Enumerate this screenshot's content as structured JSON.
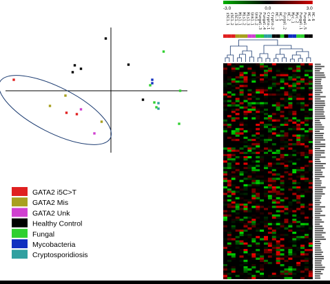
{
  "chart_data": [
    {
      "type": "scatter",
      "title": "",
      "xlabel": "",
      "ylabel": "",
      "axes": "crossing-lines-no-ticks",
      "grid": false,
      "legend_position": "bottom-left",
      "ellipse": "encircles GATA2 samples",
      "series": [
        {
          "name": "GATA2 i5C>T",
          "color": "#e02020",
          "points": [
            [
              -0.94,
              0.16
            ],
            [
              -0.43,
              -0.32
            ],
            [
              -0.33,
              -0.34
            ]
          ]
        },
        {
          "name": "GATA2 Mis",
          "color": "#a8a020",
          "points": [
            [
              -0.59,
              -0.22
            ],
            [
              -0.44,
              -0.07
            ],
            [
              -0.09,
              -0.45
            ]
          ]
        },
        {
          "name": "GATA2 Unk",
          "color": "#d040d0",
          "points": [
            [
              -0.29,
              -0.27
            ],
            [
              -0.16,
              -0.62
            ]
          ]
        },
        {
          "name": "Healthy Control",
          "color": "#000000",
          "points": [
            [
              -0.05,
              0.76
            ],
            [
              -0.35,
              0.37
            ],
            [
              -0.29,
              0.32
            ],
            [
              -0.37,
              0.27
            ],
            [
              0.17,
              0.38
            ],
            [
              0.31,
              -0.13
            ]
          ]
        },
        {
          "name": "Fungal",
          "color": "#30d030",
          "points": [
            [
              0.51,
              0.57
            ],
            [
              0.38,
              0.08
            ],
            [
              0.67,
              0.0
            ],
            [
              0.42,
              -0.17
            ],
            [
              0.66,
              -0.48
            ],
            [
              0.44,
              -0.24
            ]
          ]
        },
        {
          "name": "Mycobacteria",
          "color": "#1030c0",
          "points": [
            [
              0.4,
              0.16
            ],
            [
              0.4,
              0.11
            ]
          ]
        },
        {
          "name": "Cryptosporidiosis",
          "color": "#30a0a0",
          "points": [
            [
              0.46,
              -0.18
            ],
            [
              0.46,
              -0.26
            ]
          ]
        }
      ]
    },
    {
      "type": "heatmap",
      "colorscale": {
        "min_label": "-3.0",
        "mid_label": "0.0",
        "max_label": "3.0",
        "low_color": "#00b000",
        "mid_color": "#000000",
        "high_color": "#d00000"
      },
      "columns": [
        {
          "label": "i5C1.1",
          "group_color": "#e02020"
        },
        {
          "label": "i5C1.2",
          "group_color": "#e02020"
        },
        {
          "label": "i5C1.3",
          "group_color": "#e02020"
        },
        {
          "label": "Mis1.1",
          "group_color": "#a8a020"
        },
        {
          "label": "Mis1.2",
          "group_color": "#a8a020"
        },
        {
          "label": "Mis1.3",
          "group_color": "#a8a020"
        },
        {
          "label": "Unk1.1",
          "group_color": "#d040d0"
        },
        {
          "label": "Unk1.2",
          "group_color": "#d040d0"
        },
        {
          "label": "Fungal.3",
          "group_color": "#30d030"
        },
        {
          "label": "Fungal.4",
          "group_color": "#30d030"
        },
        {
          "label": "Crypto.1",
          "group_color": "#30a0a0"
        },
        {
          "label": "Crypto.2",
          "group_color": "#30a0a0"
        },
        {
          "label": "HC.3",
          "group_color": "#000000"
        },
        {
          "label": "HC.5",
          "group_color": "#000000"
        },
        {
          "label": "Fungal.2",
          "group_color": "#30d030"
        },
        {
          "label": "HC.2",
          "group_color": "#000000"
        },
        {
          "label": "Myc.1",
          "group_color": "#1030c0"
        },
        {
          "label": "Myc.2",
          "group_color": "#1030c0"
        },
        {
          "label": "Fungal.1",
          "group_color": "#30d030"
        },
        {
          "label": "Fungal.5",
          "group_color": "#30d030"
        },
        {
          "label": "HC.4",
          "group_color": "#000000"
        },
        {
          "label": "HC.6",
          "group_color": "#000000"
        }
      ]
    }
  ]
}
